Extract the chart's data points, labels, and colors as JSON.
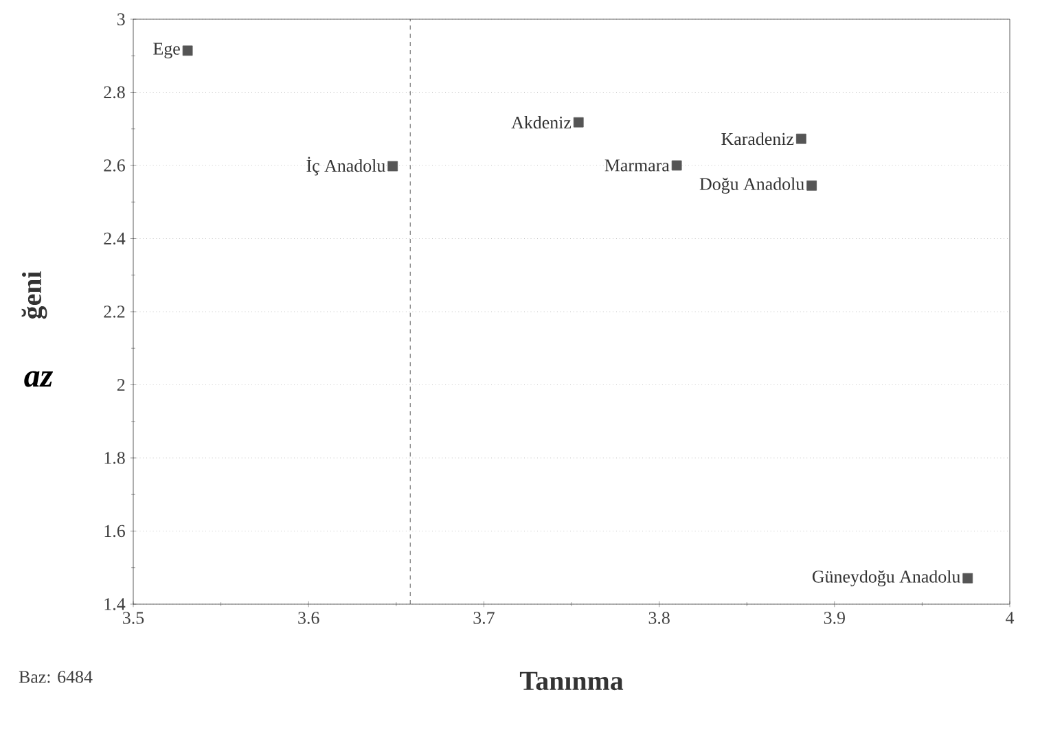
{
  "chart_data": {
    "type": "scatter",
    "xlabel": "Tanınma",
    "ylabel": "ğeni",
    "x": [
      3.531,
      3.648,
      3.754,
      3.81,
      3.881,
      3.887,
      3.976
    ],
    "values": [
      2.914,
      2.598,
      2.718,
      2.6,
      2.673,
      2.545,
      1.471
    ],
    "color": "#555555",
    "marker": "square",
    "xlim": [
      3.5,
      4
    ],
    "ylim": [
      1.4,
      3
    ],
    "xticks": [
      3.5,
      3.6,
      3.7,
      3.8,
      3.9,
      4
    ],
    "yticks": [
      1.4,
      1.6,
      1.8,
      2,
      2.2,
      2.4,
      2.6,
      2.8,
      3
    ],
    "grid": "y",
    "ref_lines": [
      {
        "axis": "x",
        "value": 3.658,
        "line_style": "dashed"
      }
    ],
    "annotations": [
      {
        "text": "Ege",
        "x": 3.531,
        "y": 2.914
      },
      {
        "text": "İç Anadolu",
        "x": 3.648,
        "y": 2.598
      },
      {
        "text": "Akdeniz",
        "x": 3.754,
        "y": 2.718
      },
      {
        "text": "Marmara",
        "x": 3.81,
        "y": 2.6
      },
      {
        "text": "Karadeniz",
        "x": 3.881,
        "y": 2.673
      },
      {
        "text": "Doğu Anadolu",
        "x": 3.887,
        "y": 2.545
      },
      {
        "text": "Güneydoğu Anadolu",
        "x": 3.976,
        "y": 1.471
      },
      "az",
      "Baz: 6484"
    ]
  }
}
